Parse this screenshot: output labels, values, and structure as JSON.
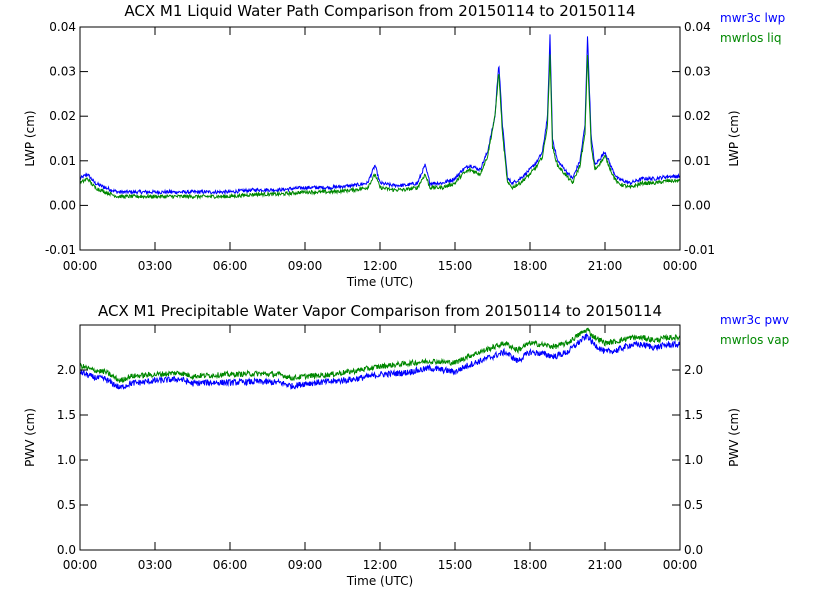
{
  "chart_data": [
    {
      "type": "line",
      "title": "ACX M1 Liquid Water Path Comparison from 20150114 to 20150114",
      "xlabel": "Time (UTC)",
      "ylabel": "LWP (cm)",
      "xticks": [
        "00:00",
        "03:00",
        "06:00",
        "09:00",
        "12:00",
        "15:00",
        "18:00",
        "21:00",
        "00:00"
      ],
      "yticks": [
        "-0.01",
        "0.00",
        "0.01",
        "0.02",
        "0.03",
        "0.04"
      ],
      "xlim": [
        0,
        24
      ],
      "ylim": [
        -0.01,
        0.04
      ],
      "series": [
        {
          "name": "mwr3c lwp",
          "color": "#0000ff",
          "noise": 0.0004,
          "x": [
            0,
            0.3,
            0.6,
            1.0,
            1.5,
            2.0,
            3.0,
            4.0,
            5.0,
            6.0,
            7.0,
            8.0,
            9.0,
            10.0,
            11.0,
            11.5,
            11.8,
            12.0,
            12.5,
            13.0,
            13.5,
            13.8,
            14.0,
            14.5,
            15.0,
            15.3,
            15.6,
            16.0,
            16.3,
            16.6,
            16.75,
            16.9,
            17.1,
            17.3,
            17.6,
            18.0,
            18.3,
            18.5,
            18.7,
            18.8,
            18.9,
            19.1,
            19.4,
            19.7,
            20.0,
            20.2,
            20.3,
            20.45,
            20.6,
            21.0,
            21.3,
            21.5,
            22.0,
            22.5,
            23.0,
            23.5,
            24.0
          ],
          "y": [
            0.006,
            0.007,
            0.005,
            0.004,
            0.003,
            0.003,
            0.003,
            0.003,
            0.003,
            0.003,
            0.0035,
            0.0035,
            0.004,
            0.004,
            0.0045,
            0.005,
            0.009,
            0.005,
            0.0045,
            0.0045,
            0.005,
            0.009,
            0.005,
            0.005,
            0.006,
            0.008,
            0.009,
            0.008,
            0.012,
            0.02,
            0.032,
            0.018,
            0.006,
            0.005,
            0.006,
            0.008,
            0.01,
            0.012,
            0.02,
            0.038,
            0.015,
            0.01,
            0.008,
            0.006,
            0.01,
            0.018,
            0.038,
            0.015,
            0.009,
            0.012,
            0.008,
            0.006,
            0.005,
            0.006,
            0.006,
            0.0065,
            0.0065
          ]
        },
        {
          "name": "mwrlos liq",
          "color": "#008800",
          "noise": 0.0004,
          "x": [
            0,
            0.3,
            0.6,
            1.0,
            1.5,
            2.0,
            3.0,
            4.0,
            5.0,
            6.0,
            7.0,
            8.0,
            9.0,
            10.0,
            11.0,
            11.5,
            11.8,
            12.0,
            12.5,
            13.0,
            13.5,
            13.8,
            14.0,
            14.5,
            15.0,
            15.3,
            15.6,
            16.0,
            16.3,
            16.6,
            16.75,
            16.9,
            17.1,
            17.3,
            17.6,
            18.0,
            18.3,
            18.5,
            18.7,
            18.8,
            18.9,
            19.1,
            19.4,
            19.7,
            20.0,
            20.2,
            20.3,
            20.45,
            20.6,
            21.0,
            21.3,
            21.5,
            22.0,
            22.5,
            23.0,
            23.5,
            24.0
          ],
          "y": [
            0.005,
            0.006,
            0.004,
            0.003,
            0.002,
            0.002,
            0.002,
            0.002,
            0.002,
            0.002,
            0.0025,
            0.0025,
            0.003,
            0.003,
            0.0035,
            0.004,
            0.007,
            0.004,
            0.0035,
            0.0035,
            0.004,
            0.007,
            0.004,
            0.004,
            0.005,
            0.007,
            0.008,
            0.007,
            0.011,
            0.02,
            0.03,
            0.016,
            0.005,
            0.004,
            0.005,
            0.007,
            0.009,
            0.011,
            0.018,
            0.034,
            0.013,
            0.009,
            0.007,
            0.005,
            0.009,
            0.016,
            0.034,
            0.013,
            0.008,
            0.011,
            0.007,
            0.005,
            0.004,
            0.005,
            0.005,
            0.0055,
            0.0055
          ]
        }
      ]
    },
    {
      "type": "line",
      "title": "ACX M1 Precipitable Water Vapor Comparison from 20150114 to 20150114",
      "xlabel": "Time (UTC)",
      "ylabel": "PWV (cm)",
      "xticks": [
        "00:00",
        "03:00",
        "06:00",
        "09:00",
        "12:00",
        "15:00",
        "18:00",
        "21:00",
        "00:00"
      ],
      "yticks": [
        "0.0",
        "0.5",
        "1.0",
        "1.5",
        "2.0"
      ],
      "xlim": [
        0,
        24
      ],
      "ylim": [
        0,
        2.5
      ],
      "series": [
        {
          "name": "mwr3c pwv",
          "color": "#0000ff",
          "noise": 0.035,
          "x": [
            0,
            0.5,
            1.0,
            1.6,
            2.0,
            3.0,
            4.0,
            4.5,
            5.0,
            6.0,
            7.0,
            8.0,
            8.5,
            9.0,
            10.0,
            11.0,
            12.0,
            13.0,
            14.0,
            15.0,
            15.5,
            16.0,
            16.5,
            17.0,
            17.5,
            18.0,
            18.5,
            19.0,
            19.5,
            20.0,
            20.3,
            20.5,
            21.0,
            21.5,
            22.0,
            22.5,
            23.0,
            23.5,
            24.0
          ],
          "y": [
            1.98,
            1.92,
            1.9,
            1.8,
            1.85,
            1.88,
            1.9,
            1.85,
            1.86,
            1.86,
            1.87,
            1.86,
            1.82,
            1.85,
            1.87,
            1.9,
            1.95,
            1.97,
            2.02,
            1.98,
            2.05,
            2.1,
            2.15,
            2.2,
            2.1,
            2.2,
            2.18,
            2.15,
            2.2,
            2.32,
            2.38,
            2.3,
            2.2,
            2.22,
            2.28,
            2.28,
            2.25,
            2.28,
            2.28
          ]
        },
        {
          "name": "mwrlos vap",
          "color": "#008800",
          "noise": 0.03,
          "x": [
            0,
            0.5,
            1.0,
            1.6,
            2.0,
            3.0,
            4.0,
            4.5,
            5.0,
            6.0,
            7.0,
            8.0,
            8.5,
            9.0,
            10.0,
            11.0,
            12.0,
            13.0,
            14.0,
            15.0,
            15.5,
            16.0,
            16.5,
            17.0,
            17.5,
            18.0,
            18.5,
            19.0,
            19.5,
            20.0,
            20.3,
            20.5,
            21.0,
            21.5,
            22.0,
            22.5,
            23.0,
            23.5,
            24.0
          ],
          "y": [
            2.05,
            2.0,
            1.98,
            1.88,
            1.93,
            1.95,
            1.97,
            1.93,
            1.94,
            1.95,
            1.96,
            1.95,
            1.91,
            1.93,
            1.95,
            1.99,
            2.04,
            2.07,
            2.1,
            2.08,
            2.15,
            2.2,
            2.25,
            2.3,
            2.22,
            2.3,
            2.28,
            2.26,
            2.3,
            2.4,
            2.45,
            2.38,
            2.3,
            2.32,
            2.36,
            2.36,
            2.33,
            2.36,
            2.36
          ]
        }
      ]
    }
  ]
}
